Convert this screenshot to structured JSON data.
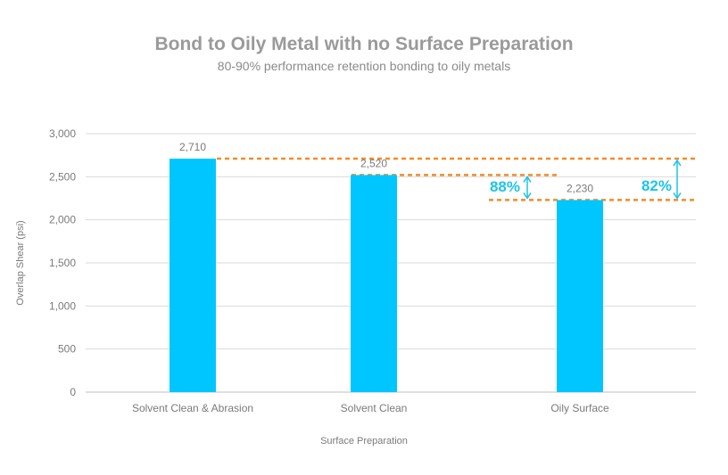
{
  "chart_data": {
    "type": "bar",
    "title": "Bond to Oily Metal with no Surface Preparation",
    "subtitle": "80-90% performance retention bonding to oily metals",
    "xlabel": "Surface Preparation",
    "ylabel": "Overlap Shear (psi)",
    "categories": [
      "Solvent Clean & Abrasion",
      "Solvent Clean",
      "Oily Surface"
    ],
    "values": [
      2710,
      2520,
      2230
    ],
    "data_labels": [
      "2,710",
      "2,520",
      "2,230"
    ],
    "ylim": [
      0,
      3000
    ],
    "yticks": [
      0,
      500,
      1000,
      1500,
      2000,
      2500,
      3000
    ],
    "ytick_labels": [
      "0",
      "500",
      "1,000",
      "1,500",
      "2,000",
      "2,500",
      "3,000"
    ],
    "grid": true,
    "annotations": [
      {
        "text": "88%",
        "from_value": 2520,
        "to_value": 2230,
        "side": "left-of-oily-bar"
      },
      {
        "text": "82%",
        "from_value": 2710,
        "to_value": 2230,
        "side": "right-of-oily-bar"
      }
    ],
    "colors": {
      "bar": "#00C6FF",
      "annotation": "#1CC4E8",
      "reference_line": "#F28C28",
      "title": "#9A9A9A",
      "subtitle": "#8A8A8A",
      "axis_text": "#7A7A7A",
      "grid": "#D9D9D9"
    }
  }
}
